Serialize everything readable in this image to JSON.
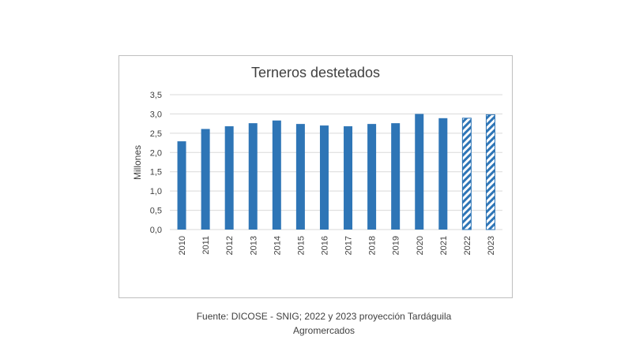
{
  "chart_data": {
    "type": "bar",
    "title": "Terneros destetados",
    "ylabel": "Millones",
    "xlabel": "",
    "ylim": [
      0,
      3.5
    ],
    "yticks": [
      "0,0",
      "0,5",
      "1,0",
      "1,5",
      "2,0",
      "2,5",
      "3,0",
      "3,5"
    ],
    "grid": true,
    "categories": [
      "2010",
      "2011",
      "2012",
      "2013",
      "2014",
      "2015",
      "2016",
      "2017",
      "2018",
      "2019",
      "2020",
      "2021",
      "2022",
      "2023"
    ],
    "values": [
      2.29,
      2.61,
      2.68,
      2.76,
      2.83,
      2.74,
      2.7,
      2.68,
      2.74,
      2.76,
      3.0,
      2.89,
      2.89,
      2.98
    ],
    "projected": [
      "2022",
      "2023"
    ],
    "bar_color": "#2e75b6"
  },
  "caption": {
    "line1": "Fuente:  DICOSE - SNIG; 2022 y 2023 proyección Tardáguila",
    "line2": "Agromercados"
  }
}
